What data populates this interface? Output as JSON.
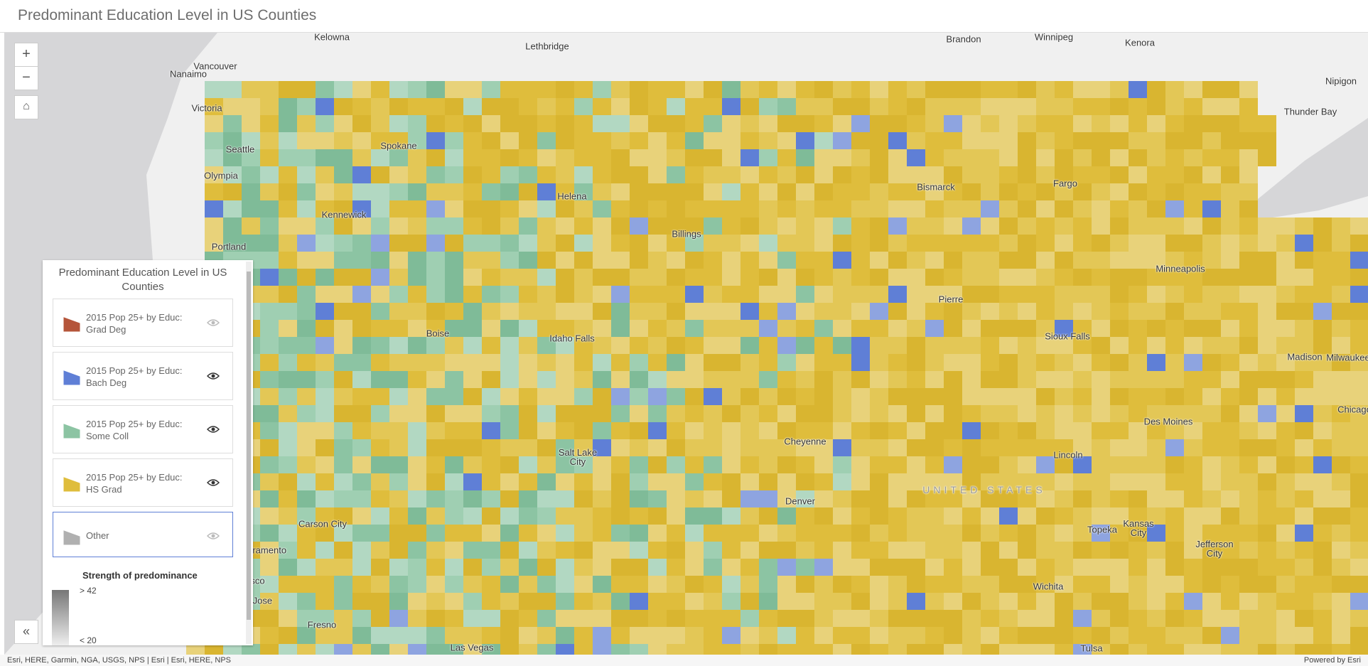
{
  "header": {
    "title": "Predominant Education Level in US Counties"
  },
  "map": {
    "labels": [
      "Kelowna",
      "Lethbridge",
      "Brandon",
      "Winnipeg",
      "Kenora",
      "Nipigon",
      "Thunder Bay",
      "Vancouver",
      "Nanaimo",
      "Victoria",
      "Seattle",
      "Olympia",
      "Spokane",
      "Kennewick",
      "Portland",
      "Helena",
      "Billings",
      "Bismarck",
      "Fargo",
      "Minneapolis",
      "Pierre",
      "Sioux Falls",
      "Madison",
      "Milwaukee",
      "Boise",
      "Idaho Falls",
      "Des Moines",
      "Chicago",
      "Cheyenne",
      "Salt Lake City",
      "Lincoln",
      "UNITED STATES",
      "Denver",
      "Carson City",
      "Topeka",
      "Kansas City",
      "Jefferson City",
      "Sacramento",
      "San Francisco",
      "San Jose",
      "Fresno",
      "Las Vegas",
      "Wichita",
      "Tulsa"
    ]
  },
  "legend": {
    "title": "Predominant Education Level in US Counties",
    "items": [
      {
        "label": "2015 Pop 25+ by Educ: Grad Deg",
        "color": "#b5553a"
      },
      {
        "label": "2015 Pop 25+ by Educ: Bach Deg",
        "color": "#5f7fd6"
      },
      {
        "label": "2015 Pop 25+ by Educ: Some Coll",
        "color": "#8cc4a3"
      },
      {
        "label": "2015 Pop 25+ by Educ: HS Grad",
        "color": "#dfbd3c"
      },
      {
        "label": "Other",
        "color": "#b0b0b0"
      }
    ],
    "strength_title": "Strength of predominance",
    "strength_labels": [
      "> 42",
      "< 20"
    ]
  },
  "attribution": "Esri, HERE, Garmin, NGA, USGS, NPS | Esri | Esri, HERE, NPS",
  "powered_by": "Powered by Esri"
}
